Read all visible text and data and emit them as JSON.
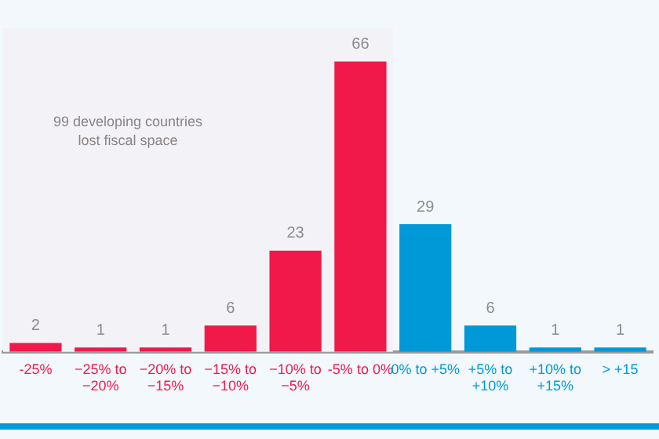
{
  "chart_data": {
    "type": "bar",
    "categories": [
      "-25%",
      "−25% to −20%",
      "−20% to −15%",
      "−15% to −10%",
      "−10% to −5%",
      "-5% to 0%",
      "0% to +5%",
      "+5% to +10%",
      "+10% to +15%",
      "> +15"
    ],
    "values": [
      2,
      1,
      1,
      6,
      23,
      66,
      29,
      6,
      1,
      1
    ],
    "colors": [
      "#f0194a",
      "#f0194a",
      "#f0194a",
      "#f0194a",
      "#f0194a",
      "#f0194a",
      "#0099d8",
      "#0099d8",
      "#0099d8",
      "#0099d8"
    ],
    "data_labels": true,
    "bands": [
      {
        "axis": "x",
        "from": "-25%",
        "to": "-5% to 0%",
        "label": "99 developing countries lost fiscal space",
        "color": "#f3f2f7"
      }
    ]
  }
}
